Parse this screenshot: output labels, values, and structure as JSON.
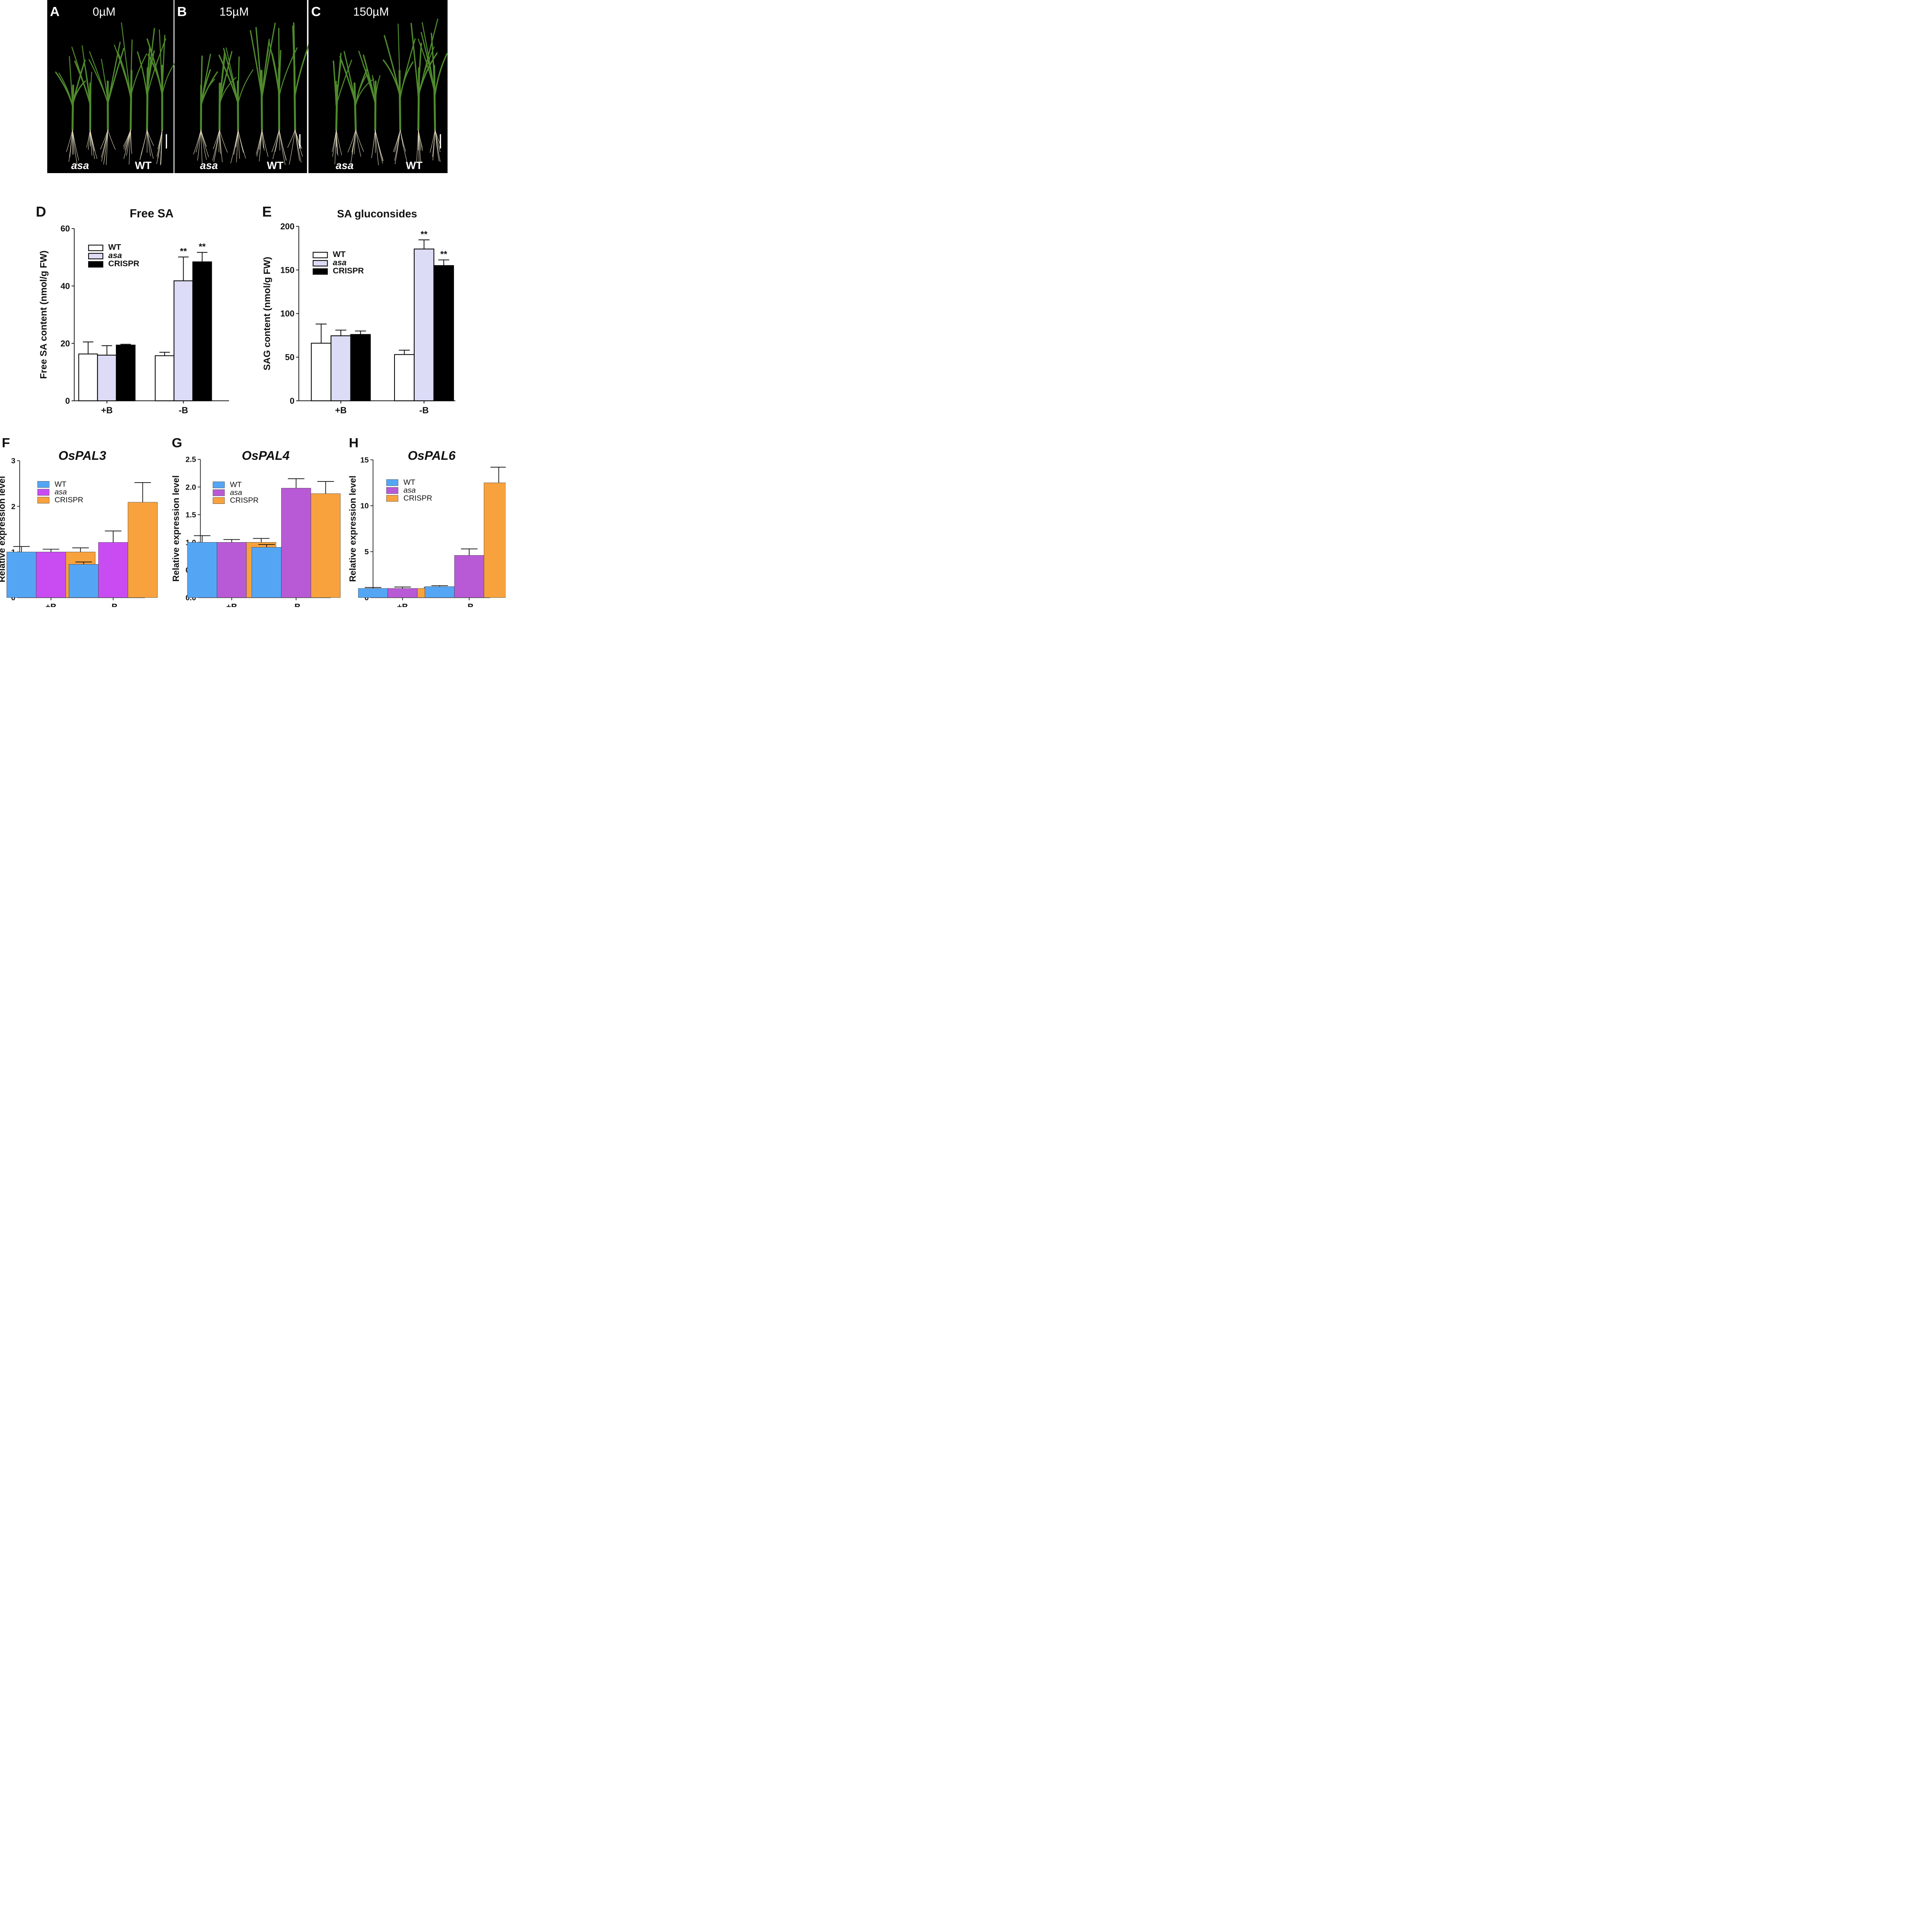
{
  "photos": [
    {
      "letter": "A",
      "concentration": "0µM",
      "left_label": "asa",
      "right_label": "WT"
    },
    {
      "letter": "B",
      "concentration": "15µM",
      "left_label": "asa",
      "right_label": "WT"
    },
    {
      "letter": "C",
      "concentration": "150µM",
      "left_label": "asa",
      "right_label": "WT"
    }
  ],
  "colors": {
    "photo_bg": "#000000",
    "leaf": "#4f8a2c",
    "root": "#d9d2b8",
    "bar_wt_outline": "#ffffff",
    "bar_asa_light": "#dcdcf7",
    "bar_crispr_black": "#000000",
    "expr_wt": "#54a6f5",
    "expr_asa_F": "#c94cf2",
    "expr_asa_GH": "#b85ad6",
    "expr_crispr": "#f8a23e"
  },
  "chart_data": [
    {
      "letter": "D",
      "type": "bar",
      "title": "Free SA",
      "title_italic": false,
      "ylabel": "Free SA content (nmol/g FW)",
      "xlabel": "",
      "ylim": [
        0,
        60
      ],
      "yticks": [
        0,
        20,
        40,
        60
      ],
      "categories": [
        "+B",
        "-B"
      ],
      "legend_position": "top-left",
      "series": [
        {
          "name": "WT",
          "italic": false,
          "values": [
            16.3,
            15.7
          ],
          "errors": [
            4.2,
            1.2
          ]
        },
        {
          "name": "asa",
          "italic": true,
          "values": [
            15.9,
            41.8
          ],
          "errors": [
            3.3,
            8.3
          ]
        },
        {
          "name": "CRISPR",
          "italic": false,
          "values": [
            19.4,
            48.4
          ],
          "errors": [
            0.3,
            3.3
          ]
        }
      ],
      "annotations": [
        {
          "category": "-B",
          "series": "asa",
          "text": "**"
        },
        {
          "category": "-B",
          "series": "CRISPR",
          "text": "**"
        }
      ]
    },
    {
      "letter": "E",
      "type": "bar",
      "title": "SA gluconsides",
      "title_italic": false,
      "ylabel": "SAG content (nmol/g FW)",
      "xlabel": "",
      "ylim": [
        0,
        200
      ],
      "yticks": [
        0,
        50,
        100,
        150,
        200
      ],
      "categories": [
        "+B",
        "-B"
      ],
      "legend_position": "top-left",
      "series": [
        {
          "name": "WT",
          "italic": false,
          "values": [
            66,
            53
          ],
          "errors": [
            22,
            5
          ]
        },
        {
          "name": "asa",
          "italic": true,
          "values": [
            74.5,
            174
          ],
          "errors": [
            6.5,
            10.5
          ]
        },
        {
          "name": "CRISPR",
          "italic": false,
          "values": [
            76,
            155
          ],
          "errors": [
            4,
            6.5
          ]
        }
      ],
      "annotations": [
        {
          "category": "-B",
          "series": "asa",
          "text": "**"
        },
        {
          "category": "-B",
          "series": "CRISPR",
          "text": "**"
        }
      ]
    },
    {
      "letter": "F",
      "type": "bar",
      "title": "OsPAL3",
      "title_italic": true,
      "ylabel": "Relative expression level",
      "xlabel": "",
      "ylim": [
        0,
        3
      ],
      "yticks": [
        0,
        1,
        2,
        3
      ],
      "categories": [
        "+B",
        "-B"
      ],
      "legend_position": "top-left",
      "series": [
        {
          "name": "WT",
          "italic": false,
          "values": [
            1.0,
            0.73
          ],
          "errors": [
            0.12,
            0.05
          ]
        },
        {
          "name": "asa",
          "italic": true,
          "values": [
            1.0,
            1.21
          ],
          "errors": [
            0.06,
            0.25
          ]
        },
        {
          "name": "CRISPR",
          "italic": false,
          "values": [
            1.0,
            2.09
          ],
          "errors": [
            0.09,
            0.43
          ]
        }
      ],
      "annotations": []
    },
    {
      "letter": "G",
      "type": "bar",
      "title": "OsPAL4",
      "title_italic": true,
      "ylabel": "Relative expression level",
      "xlabel": "",
      "ylim": [
        0,
        2.5
      ],
      "yticks": [
        "0.0",
        "0.5",
        "1.0",
        "1.5",
        "2.0",
        "2.5"
      ],
      "categories": [
        "+B",
        "-B"
      ],
      "legend_position": "top-left",
      "series": [
        {
          "name": "WT",
          "italic": false,
          "values": [
            1.0,
            0.91
          ],
          "errors": [
            0.12,
            0.05
          ]
        },
        {
          "name": "asa",
          "italic": true,
          "values": [
            1.0,
            1.98
          ],
          "errors": [
            0.05,
            0.17
          ]
        },
        {
          "name": "CRISPR",
          "italic": false,
          "values": [
            1.0,
            1.88
          ],
          "errors": [
            0.07,
            0.22
          ]
        }
      ],
      "annotations": []
    },
    {
      "letter": "H",
      "type": "bar",
      "title": "OsPAL6",
      "title_italic": true,
      "ylabel": "Relative expression level",
      "xlabel": "",
      "ylim": [
        0,
        15
      ],
      "yticks": [
        0,
        5,
        10,
        15
      ],
      "categories": [
        "+B",
        "-B"
      ],
      "legend_position": "top-left",
      "series": [
        {
          "name": "WT",
          "italic": false,
          "values": [
            1.0,
            1.2
          ],
          "errors": [
            0.1,
            0.1
          ]
        },
        {
          "name": "asa",
          "italic": true,
          "values": [
            1.0,
            4.6
          ],
          "errors": [
            0.15,
            0.7
          ]
        },
        {
          "name": "CRISPR",
          "italic": false,
          "values": [
            1.0,
            12.5
          ],
          "errors": [
            0.1,
            1.7
          ]
        }
      ],
      "annotations": []
    }
  ]
}
